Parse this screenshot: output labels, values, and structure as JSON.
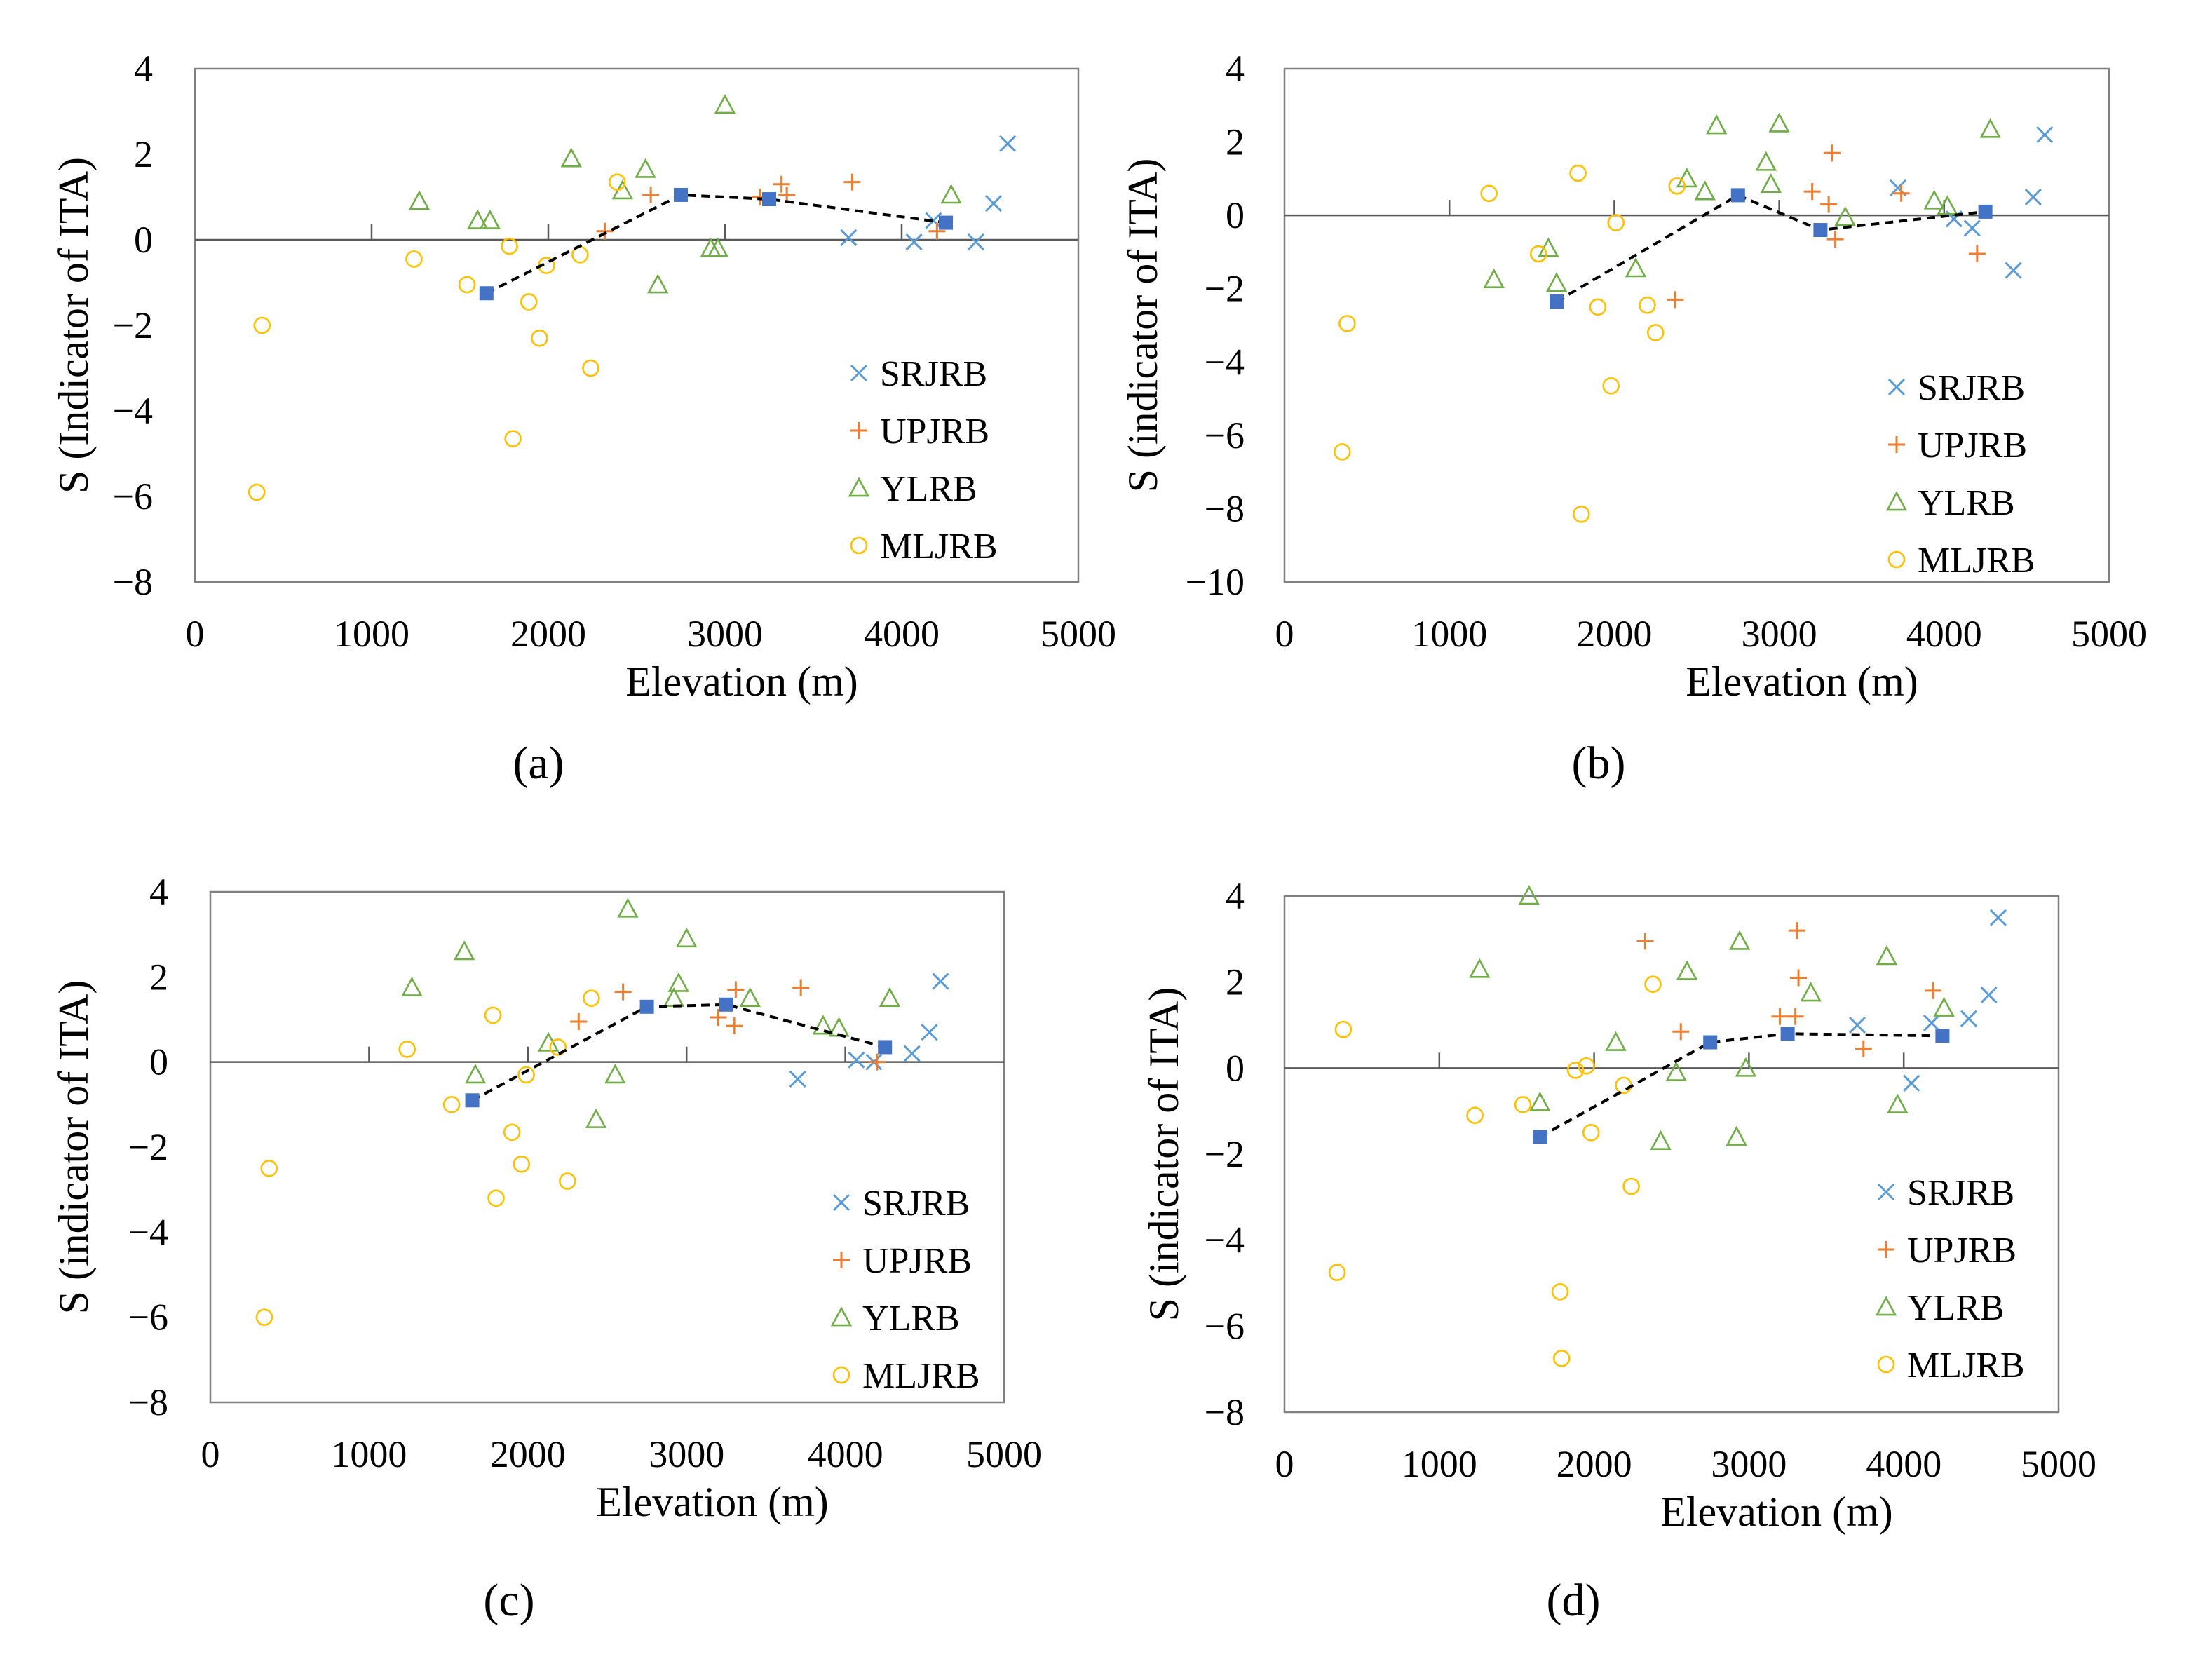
{
  "colors": {
    "SRJRB": "#5B9BD5",
    "UPJRB": "#ED7D31",
    "YLRB": "#70AD47",
    "MLJRB": "#FFC000",
    "mean": "#4472C4",
    "axis": "#000000",
    "zero_line": "#595959",
    "plot_border": "#808080"
  },
  "legend_marker_icons": {
    "SRJRB": "cross-x-icon",
    "UPJRB": "plus-icon",
    "YLRB": "triangle-icon",
    "MLJRB": "circle-icon"
  },
  "chart_data": [
    {
      "type": "scatter",
      "caption": "(a)",
      "xlabel": "Elevation (m)",
      "ylabel": "S (Indicator of ITA)",
      "xlim": [
        0,
        5000
      ],
      "ylim": [
        -8,
        4
      ],
      "xticks": [
        0,
        1000,
        2000,
        3000,
        4000,
        5000
      ],
      "yticks": [
        4,
        2,
        0,
        -2,
        -4,
        -6,
        -8
      ],
      "legend_position": "bottom-right",
      "series": [
        {
          "name": "SRJRB",
          "marker": "x",
          "points": [
            [
              3700,
              0.05
            ],
            [
              4070,
              -0.05
            ],
            [
              4180,
              0.45
            ],
            [
              4420,
              -0.05
            ],
            [
              4520,
              0.85
            ],
            [
              4600,
              2.25
            ]
          ]
        },
        {
          "name": "UPJRB",
          "marker": "+",
          "points": [
            [
              2320,
              0.2
            ],
            [
              2580,
              1.05
            ],
            [
              3200,
              1.0
            ],
            [
              3320,
              1.3
            ],
            [
              3350,
              1.05
            ],
            [
              3720,
              1.35
            ],
            [
              4200,
              0.2
            ]
          ]
        },
        {
          "name": "YLRB",
          "marker": "triangle",
          "points": [
            [
              1270,
              0.9
            ],
            [
              1600,
              0.45
            ],
            [
              1670,
              0.45
            ],
            [
              2130,
              1.9
            ],
            [
              2420,
              1.15
            ],
            [
              2550,
              1.65
            ],
            [
              2620,
              -1.05
            ],
            [
              2920,
              -0.2
            ],
            [
              2960,
              -0.2
            ],
            [
              3000,
              3.15
            ],
            [
              4280,
              1.05
            ]
          ]
        },
        {
          "name": "MLJRB",
          "marker": "circle",
          "points": [
            [
              350,
              -5.9
            ],
            [
              380,
              -2.0
            ],
            [
              1240,
              -0.45
            ],
            [
              1540,
              -1.05
            ],
            [
              1780,
              -0.15
            ],
            [
              1800,
              -4.65
            ],
            [
              1890,
              -1.45
            ],
            [
              1950,
              -2.3
            ],
            [
              1990,
              -0.6
            ],
            [
              2180,
              -0.35
            ],
            [
              2240,
              -3.0
            ],
            [
              2390,
              1.35
            ]
          ]
        }
      ],
      "mean_line": {
        "points": [
          [
            1650,
            -1.25
          ],
          [
            2750,
            1.05
          ],
          [
            3250,
            0.95
          ],
          [
            4250,
            0.4
          ]
        ]
      }
    },
    {
      "type": "scatter",
      "caption": "(b)",
      "xlabel": "Elevation (m)",
      "ylabel": "S (indicator of ITA)",
      "xlim": [
        0,
        5000
      ],
      "ylim": [
        -10,
        4
      ],
      "xticks": [
        0,
        1000,
        2000,
        3000,
        4000,
        5000
      ],
      "yticks": [
        4,
        2,
        0,
        -2,
        -4,
        -6,
        -8,
        -10
      ],
      "legend_position": "bottom-right",
      "series": [
        {
          "name": "SRJRB",
          "marker": "x",
          "points": [
            [
              3720,
              0.75
            ],
            [
              4060,
              -0.1
            ],
            [
              4170,
              -0.35
            ],
            [
              4420,
              -1.5
            ],
            [
              4540,
              0.5
            ],
            [
              4610,
              2.2
            ]
          ]
        },
        {
          "name": "UPJRB",
          "marker": "+",
          "points": [
            [
              2370,
              -2.3
            ],
            [
              3200,
              0.65
            ],
            [
              3300,
              0.3
            ],
            [
              3320,
              1.7
            ],
            [
              3340,
              -0.65
            ],
            [
              3740,
              0.6
            ],
            [
              4200,
              -1.05
            ]
          ]
        },
        {
          "name": "YLRB",
          "marker": "triangle",
          "points": [
            [
              1270,
              -1.75
            ],
            [
              1600,
              -0.9
            ],
            [
              1650,
              -1.85
            ],
            [
              2130,
              -1.45
            ],
            [
              2440,
              1.0
            ],
            [
              2550,
              0.65
            ],
            [
              2620,
              2.45
            ],
            [
              2920,
              1.45
            ],
            [
              2950,
              0.85
            ],
            [
              3000,
              2.5
            ],
            [
              3400,
              -0.05
            ],
            [
              3940,
              0.4
            ],
            [
              4020,
              0.25
            ],
            [
              4280,
              2.35
            ]
          ]
        },
        {
          "name": "MLJRB",
          "marker": "circle",
          "points": [
            [
              350,
              -6.45
            ],
            [
              380,
              -2.95
            ],
            [
              1240,
              0.6
            ],
            [
              1540,
              -1.05
            ],
            [
              1780,
              1.15
            ],
            [
              1800,
              -8.15
            ],
            [
              1900,
              -2.5
            ],
            [
              1980,
              -4.65
            ],
            [
              2010,
              -0.2
            ],
            [
              2200,
              -2.45
            ],
            [
              2250,
              -3.2
            ],
            [
              2380,
              0.8
            ]
          ]
        }
      ],
      "mean_line": {
        "points": [
          [
            1650,
            -2.35
          ],
          [
            2750,
            0.55
          ],
          [
            3250,
            -0.4
          ],
          [
            4250,
            0.1
          ]
        ]
      }
    },
    {
      "type": "scatter",
      "caption": "(c)",
      "xlabel": "Elevation (m)",
      "ylabel": "S (indicator of ITA)",
      "xlim": [
        0,
        5000
      ],
      "ylim": [
        -8,
        4
      ],
      "xticks": [
        0,
        1000,
        2000,
        3000,
        4000,
        5000
      ],
      "yticks": [
        4,
        2,
        0,
        -2,
        -4,
        -6,
        -8
      ],
      "legend_position": "bottom-right",
      "series": [
        {
          "name": "SRJRB",
          "marker": "x",
          "points": [
            [
              3700,
              -0.4
            ],
            [
              4070,
              0.05
            ],
            [
              4180,
              0.0
            ],
            [
              4420,
              0.2
            ],
            [
              4530,
              0.7
            ],
            [
              4600,
              1.9
            ]
          ]
        },
        {
          "name": "UPJRB",
          "marker": "+",
          "points": [
            [
              2320,
              0.95
            ],
            [
              2600,
              1.65
            ],
            [
              3200,
              1.05
            ],
            [
              3300,
              0.85
            ],
            [
              3310,
              1.7
            ],
            [
              3720,
              1.75
            ],
            [
              4200,
              0.0
            ]
          ]
        },
        {
          "name": "YLRB",
          "marker": "triangle",
          "points": [
            [
              1270,
              1.75
            ],
            [
              1600,
              2.6
            ],
            [
              1670,
              -0.3
            ],
            [
              2130,
              0.45
            ],
            [
              2430,
              -1.35
            ],
            [
              2550,
              -0.3
            ],
            [
              2630,
              3.6
            ],
            [
              2920,
              1.5
            ],
            [
              2950,
              1.85
            ],
            [
              3000,
              2.9
            ],
            [
              3400,
              1.5
            ],
            [
              3860,
              0.85
            ],
            [
              3960,
              0.8
            ],
            [
              4280,
              1.5
            ]
          ]
        },
        {
          "name": "MLJRB",
          "marker": "circle",
          "points": [
            [
              340,
              -6.0
            ],
            [
              370,
              -2.5
            ],
            [
              1240,
              0.3
            ],
            [
              1520,
              -1.0
            ],
            [
              1780,
              1.1
            ],
            [
              1800,
              -3.2
            ],
            [
              1900,
              -1.65
            ],
            [
              1960,
              -2.4
            ],
            [
              1990,
              -0.3
            ],
            [
              2190,
              0.35
            ],
            [
              2250,
              -2.8
            ],
            [
              2400,
              1.5
            ]
          ]
        }
      ],
      "mean_line": {
        "points": [
          [
            1650,
            -0.9
          ],
          [
            2750,
            1.3
          ],
          [
            3250,
            1.35
          ],
          [
            4250,
            0.35
          ]
        ]
      }
    },
    {
      "type": "scatter",
      "caption": "(d)",
      "xlabel": "Elevation (m)",
      "ylabel": "S (indicator of ITA)",
      "xlim": [
        0,
        5000
      ],
      "ylim": [
        -8,
        4
      ],
      "xticks": [
        0,
        1000,
        2000,
        3000,
        4000,
        5000
      ],
      "yticks": [
        4,
        2,
        0,
        -2,
        -4,
        -6,
        -8
      ],
      "legend_position": "bottom-right",
      "series": [
        {
          "name": "SRJRB",
          "marker": "x",
          "points": [
            [
              3700,
              1.0
            ],
            [
              4050,
              -0.35
            ],
            [
              4180,
              1.05
            ],
            [
              4420,
              1.15
            ],
            [
              4550,
              1.7
            ],
            [
              4610,
              3.5
            ]
          ]
        },
        {
          "name": "UPJRB",
          "marker": "+",
          "points": [
            [
              2330,
              2.95
            ],
            [
              2560,
              0.85
            ],
            [
              3200,
              1.2
            ],
            [
              3300,
              1.2
            ],
            [
              3320,
              2.1
            ],
            [
              3310,
              3.2
            ],
            [
              3740,
              0.45
            ],
            [
              4190,
              1.8
            ]
          ]
        },
        {
          "name": "YLRB",
          "marker": "triangle",
          "points": [
            [
              1260,
              2.3
            ],
            [
              1580,
              4.0
            ],
            [
              1650,
              -0.8
            ],
            [
              2140,
              0.6
            ],
            [
              2430,
              -1.7
            ],
            [
              2530,
              -0.1
            ],
            [
              2600,
              2.25
            ],
            [
              2920,
              -1.6
            ],
            [
              2940,
              2.95
            ],
            [
              2980,
              0.0
            ],
            [
              3400,
              1.75
            ],
            [
              3890,
              2.6
            ],
            [
              3960,
              -0.85
            ],
            [
              4260,
              1.4
            ]
          ]
        },
        {
          "name": "MLJRB",
          "marker": "circle",
          "points": [
            [
              340,
              -4.75
            ],
            [
              380,
              0.9
            ],
            [
              1230,
              -1.1
            ],
            [
              1540,
              -0.85
            ],
            [
              1780,
              -5.2
            ],
            [
              1790,
              -6.75
            ],
            [
              1880,
              -0.05
            ],
            [
              1950,
              0.05
            ],
            [
              1980,
              -1.5
            ],
            [
              2190,
              -0.4
            ],
            [
              2240,
              -2.75
            ],
            [
              2380,
              1.95
            ]
          ]
        }
      ],
      "mean_line": {
        "points": [
          [
            1650,
            -1.6
          ],
          [
            2750,
            0.6
          ],
          [
            3250,
            0.8
          ],
          [
            4250,
            0.75
          ]
        ]
      }
    }
  ]
}
